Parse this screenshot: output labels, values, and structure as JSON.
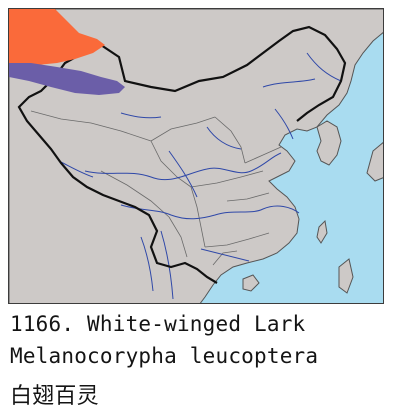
{
  "caption": {
    "title": "1166. White-winged Lark",
    "scientific_name": "Melanocorypha leucoptera",
    "chinese_name": "白翅百灵"
  },
  "map": {
    "colors": {
      "sea": "#a9dcf0",
      "land": "#cdc9c7",
      "national_border": "#111111",
      "province_border": "#6a6a6a",
      "river": "#2f48a8",
      "breeding_range": "#fa6a3a",
      "wintering_range": "#6b5ea8"
    }
  }
}
